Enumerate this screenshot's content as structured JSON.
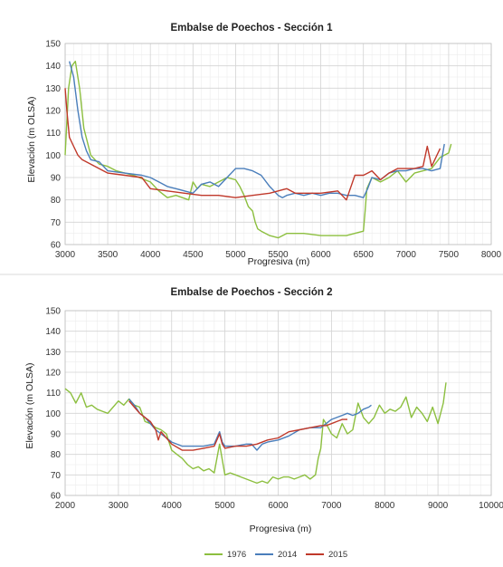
{
  "colors": {
    "1976": "#8cbf3f",
    "2014": "#4a7ebb",
    "2015": "#c0392b"
  },
  "legend": [
    {
      "name": "1976",
      "color": "#8cbf3f"
    },
    {
      "name": "2014",
      "color": "#4a7ebb"
    },
    {
      "name": "2015",
      "color": "#c0392b"
    }
  ],
  "chart_data": [
    {
      "type": "line",
      "title": "Embalse de Poechos - Sección 1",
      "xlabel": "Progresiva (m)",
      "ylabel": "Elevación (m OLSA)",
      "xlim": [
        3000,
        8000
      ],
      "ylim": [
        60,
        150
      ],
      "xticks": [
        3000,
        3500,
        4000,
        4500,
        5000,
        5500,
        6000,
        6500,
        7000,
        7500,
        8000
      ],
      "yticks": [
        60,
        70,
        80,
        90,
        100,
        110,
        120,
        130,
        140,
        150
      ],
      "grid": true,
      "series": [
        {
          "name": "1976",
          "x": [
            3000,
            3040,
            3080,
            3120,
            3170,
            3220,
            3300,
            3400,
            3500,
            3600,
            3800,
            4000,
            4100,
            4200,
            4300,
            4450,
            4500,
            4550,
            4600,
            4700,
            4800,
            4900,
            5000,
            5050,
            5100,
            5150,
            5200,
            5230,
            5260,
            5300,
            5400,
            5500,
            5600,
            5800,
            6000,
            6200,
            6300,
            6500,
            6520,
            6540,
            6600,
            6700,
            6800,
            6900,
            7000,
            7100,
            7200,
            7300,
            7400,
            7500,
            7530
          ],
          "y": [
            100,
            130,
            140,
            142,
            130,
            112,
            100,
            96,
            95,
            93,
            91,
            88,
            84,
            81,
            82,
            80,
            88,
            85,
            87,
            86,
            88,
            90,
            89,
            86,
            82,
            77,
            75,
            70,
            67,
            66,
            64,
            63,
            65,
            65,
            64,
            64,
            64,
            66,
            75,
            85,
            90,
            88,
            90,
            93,
            88,
            92,
            93,
            94,
            99,
            101,
            105
          ]
        },
        {
          "name": "2014",
          "x": [
            3050,
            3100,
            3150,
            3200,
            3250,
            3300,
            3400,
            3500,
            3700,
            3900,
            4000,
            4100,
            4200,
            4300,
            4400,
            4500,
            4600,
            4700,
            4800,
            4900,
            5000,
            5050,
            5100,
            5200,
            5300,
            5400,
            5500,
            5550,
            5600,
            5700,
            5800,
            5900,
            6000,
            6100,
            6200,
            6300,
            6400,
            6500,
            6550,
            6600,
            6700,
            6800,
            6900,
            7000,
            7100,
            7200,
            7300,
            7400,
            7450
          ],
          "y": [
            142,
            135,
            120,
            108,
            102,
            98,
            97,
            93,
            92,
            91,
            90,
            88,
            86,
            85,
            84,
            83,
            87,
            88,
            86,
            90,
            94,
            94,
            94,
            93,
            91,
            86,
            82,
            81,
            82,
            83,
            82,
            83,
            82,
            83,
            83,
            82,
            82,
            81,
            85,
            90,
            89,
            92,
            93,
            93,
            94,
            94,
            93,
            94,
            105
          ]
        },
        {
          "name": "2015",
          "x": [
            3000,
            3020,
            3050,
            3100,
            3150,
            3200,
            3300,
            3500,
            3700,
            3900,
            4000,
            4200,
            4400,
            4600,
            4800,
            5000,
            5200,
            5400,
            5600,
            5700,
            5800,
            6000,
            6200,
            6300,
            6400,
            6500,
            6550,
            6600,
            6700,
            6800,
            6900,
            7000,
            7100,
            7200,
            7250,
            7300,
            7400
          ],
          "y": [
            130,
            120,
            108,
            104,
            100,
            98,
            96,
            92,
            91,
            90,
            85,
            84,
            83,
            82,
            82,
            81,
            82,
            83,
            85,
            83,
            83,
            83,
            84,
            80,
            91,
            91,
            92,
            93,
            89,
            92,
            94,
            94,
            94,
            95,
            104,
            95,
            103
          ]
        }
      ]
    },
    {
      "type": "line",
      "title": "Embalse de Poechos - Sección 2",
      "xlabel": "Progresiva (m)",
      "ylabel": "Elevación (m OLSA)",
      "xlim": [
        2000,
        10000
      ],
      "ylim": [
        60,
        150
      ],
      "xticks": [
        2000,
        3000,
        4000,
        5000,
        6000,
        7000,
        8000,
        9000,
        10000
      ],
      "yticks": [
        60,
        70,
        80,
        90,
        100,
        110,
        120,
        130,
        140,
        150
      ],
      "grid": true,
      "series": [
        {
          "name": "1976",
          "x": [
            2000,
            2100,
            2200,
            2300,
            2400,
            2500,
            2600,
            2700,
            2800,
            2900,
            3000,
            3100,
            3200,
            3300,
            3400,
            3500,
            3600,
            3700,
            3800,
            3900,
            4000,
            4100,
            4200,
            4300,
            4400,
            4500,
            4600,
            4700,
            4800,
            4900,
            5000,
            5100,
            5200,
            5300,
            5400,
            5500,
            5600,
            5700,
            5800,
            5900,
            6000,
            6100,
            6200,
            6300,
            6400,
            6500,
            6600,
            6700,
            6750,
            6800,
            6850,
            6900,
            7000,
            7100,
            7200,
            7300,
            7400,
            7500,
            7600,
            7700,
            7800,
            7900,
            8000,
            8100,
            8200,
            8300,
            8400,
            8500,
            8600,
            8700,
            8800,
            8900,
            9000,
            9100,
            9150
          ],
          "y": [
            112,
            110,
            105,
            110,
            103,
            104,
            102,
            101,
            100,
            103,
            106,
            104,
            107,
            104,
            103,
            96,
            95,
            93,
            92,
            90,
            82,
            80,
            78,
            75,
            73,
            74,
            72,
            73,
            71,
            85,
            70,
            71,
            70,
            69,
            68,
            67,
            66,
            67,
            66,
            69,
            68,
            69,
            69,
            68,
            69,
            70,
            68,
            70,
            78,
            83,
            97,
            95,
            90,
            88,
            95,
            90,
            92,
            105,
            98,
            95,
            98,
            104,
            100,
            102,
            101,
            103,
            108,
            98,
            103,
            100,
            96,
            103,
            95,
            105,
            115
          ]
        },
        {
          "name": "2014",
          "x": [
            3200,
            3300,
            3400,
            3500,
            3600,
            3700,
            3800,
            3900,
            4000,
            4200,
            4400,
            4600,
            4800,
            4900,
            4950,
            5000,
            5200,
            5400,
            5500,
            5600,
            5700,
            5800,
            6000,
            6200,
            6400,
            6600,
            6800,
            6900,
            7000,
            7100,
            7200,
            7300,
            7400,
            7500,
            7600,
            7700,
            7750
          ],
          "y": [
            107,
            104,
            100,
            98,
            95,
            92,
            90,
            88,
            86,
            84,
            84,
            84,
            85,
            91,
            86,
            84,
            84,
            85,
            85,
            82,
            85,
            86,
            87,
            89,
            92,
            93,
            93,
            95,
            97,
            98,
            99,
            100,
            99,
            100,
            102,
            103,
            104
          ]
        },
        {
          "name": "2015",
          "x": [
            3200,
            3300,
            3400,
            3500,
            3600,
            3700,
            3750,
            3800,
            3900,
            4000,
            4200,
            4400,
            4600,
            4800,
            4900,
            4950,
            5000,
            5200,
            5400,
            5600,
            5800,
            6000,
            6200,
            6400,
            6600,
            6800,
            6900,
            7000,
            7100,
            7200,
            7300
          ],
          "y": [
            106,
            103,
            100,
            98,
            96,
            92,
            87,
            91,
            88,
            85,
            82,
            82,
            83,
            84,
            90,
            85,
            83,
            84,
            84,
            85,
            87,
            88,
            91,
            92,
            93,
            94,
            94,
            95,
            96,
            97,
            97
          ]
        }
      ]
    }
  ]
}
